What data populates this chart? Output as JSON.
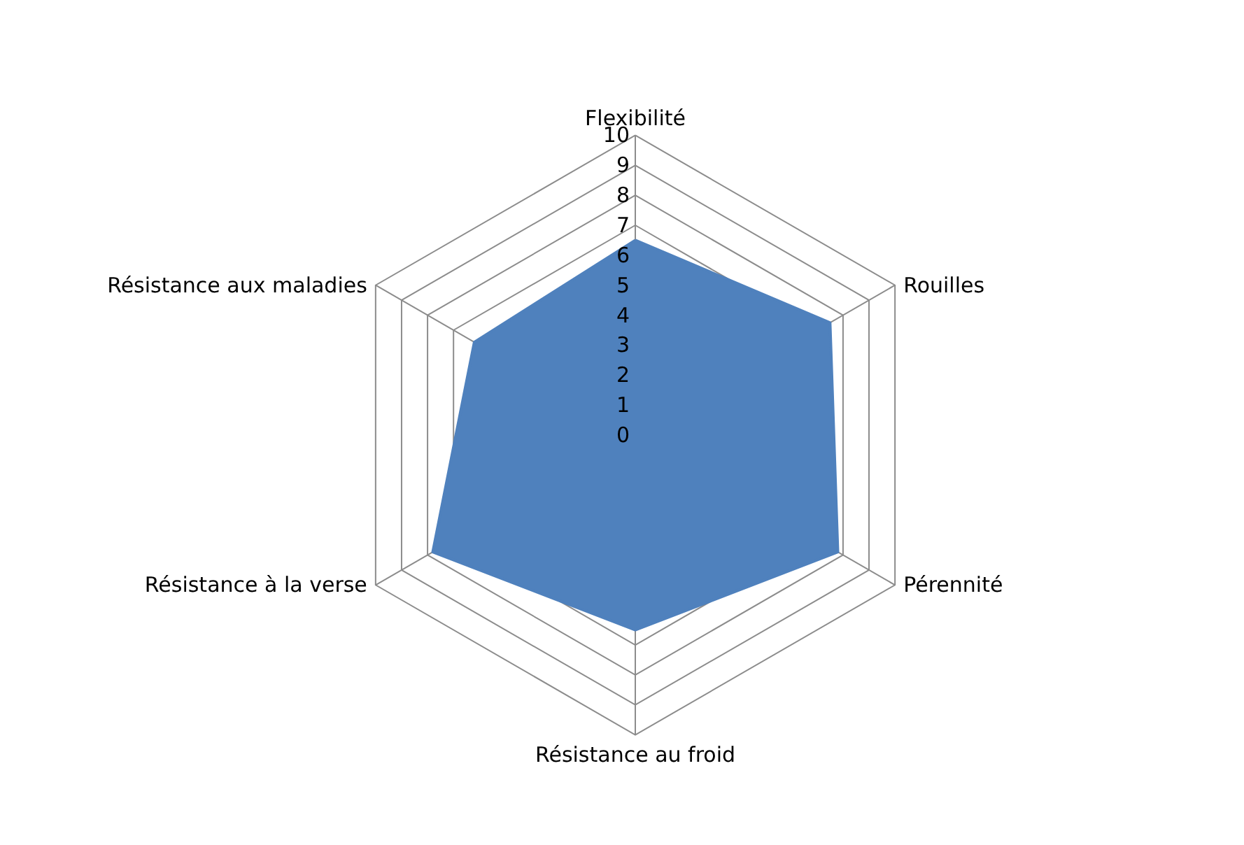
{
  "chart_data": {
    "type": "radar",
    "categories": [
      "Flexibilité",
      "Rouilles",
      "Pérennité",
      "Résistance au froid",
      "Résistance à la verse",
      "Résistance aux maladies"
    ],
    "series": [
      {
        "color": "#4f81bd",
        "values": [
          6.5,
          7.5,
          7.8,
          6.5,
          7.8,
          6.2
        ]
      }
    ],
    "ylim": [
      0,
      10
    ],
    "yticks": [
      0,
      1,
      2,
      3,
      4,
      5,
      6,
      7,
      8,
      9,
      10
    ],
    "grid": true
  }
}
